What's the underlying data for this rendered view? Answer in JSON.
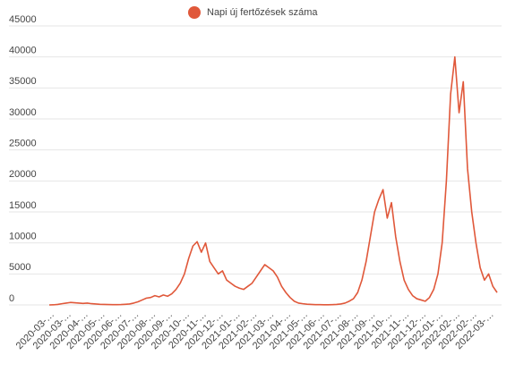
{
  "chart_data": {
    "type": "line",
    "legend": "top",
    "categories": [
      "2020-03-…",
      null,
      null,
      null,
      "2020-03-…",
      null,
      null,
      null,
      "2020-04-…",
      null,
      null,
      null,
      "2020-05-…",
      null,
      null,
      null,
      "2020-06-…",
      null,
      null,
      null,
      "2020-07-…",
      null,
      null,
      null,
      "2020-08-…",
      null,
      null,
      null,
      "2020-09-…",
      null,
      null,
      null,
      "2020-10-…",
      null,
      null,
      null,
      "2020-11-…",
      null,
      null,
      null,
      "2020-12-…",
      null,
      null,
      null,
      "2021-01-…",
      null,
      null,
      null,
      "2021-02-…",
      null,
      null,
      null,
      "2021-03-…",
      null,
      null,
      null,
      "2021-04-…",
      null,
      null,
      null,
      "2021-05-…",
      null,
      null,
      null,
      "2021-06-…",
      null,
      null,
      null,
      "2021-07-…",
      null,
      null,
      null,
      "2021-08-…",
      null,
      null,
      null,
      "2021-09-…",
      null,
      null,
      null,
      "2021-10-…",
      null,
      null,
      null,
      "2021-11-…",
      null,
      null,
      null,
      "2021-12-…",
      null,
      null,
      null,
      "2022-01-…",
      null,
      null,
      null,
      "2022-02-…",
      null,
      null,
      null,
      "2022-02-…",
      null,
      null,
      null,
      "2022-03-…",
      null,
      null
    ],
    "series": [
      {
        "name": "Napi új fertőzések száma",
        "color": "#e0583a",
        "values": [
          0,
          20,
          80,
          200,
          300,
          400,
          350,
          300,
          250,
          300,
          200,
          150,
          100,
          80,
          60,
          50,
          40,
          60,
          100,
          150,
          300,
          500,
          800,
          1100,
          1200,
          1500,
          1300,
          1600,
          1400,
          1800,
          2500,
          3500,
          5000,
          7500,
          9500,
          10200,
          8500,
          10000,
          7000,
          6000,
          5000,
          5500,
          4000,
          3500,
          3000,
          2700,
          2500,
          3000,
          3500,
          4500,
          5500,
          6500,
          6000,
          5500,
          4500,
          3000,
          2000,
          1200,
          600,
          300,
          200,
          120,
          80,
          50,
          40,
          30,
          30,
          50,
          80,
          150,
          300,
          600,
          1000,
          2000,
          4000,
          7000,
          11000,
          15000,
          17000,
          18600,
          14000,
          16500,
          11000,
          7000,
          4000,
          2500,
          1500,
          1000,
          800,
          600,
          1200,
          2500,
          5000,
          10000,
          20000,
          34000,
          40000,
          31000,
          36000,
          22000,
          15000,
          10000,
          6000,
          4000,
          5000,
          3000,
          2000
        ]
      }
    ],
    "ylim": [
      0,
      45000
    ],
    "yticks": [
      0,
      5000,
      10000,
      15000,
      20000,
      25000,
      30000,
      35000,
      40000,
      45000
    ],
    "grid": true
  }
}
